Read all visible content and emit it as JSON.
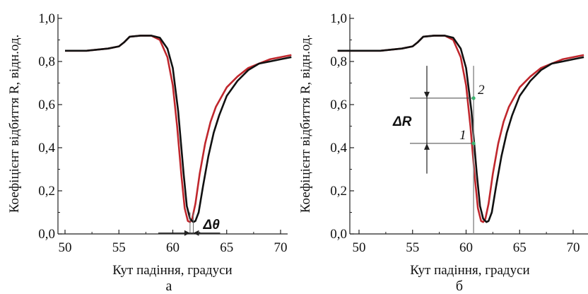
{
  "chart_data": [
    {
      "type": "line",
      "panel_label": "а",
      "xlabel": "Кут падіння, градуси",
      "ylabel": "Коефіцієнт відбиття R, відн.од.",
      "xlim": [
        50,
        71
      ],
      "ylim": [
        0,
        1.0
      ],
      "xticks": [
        "50",
        "55",
        "60",
        "65",
        "70"
      ],
      "yticks": [
        "0,0",
        "0,2",
        "0,4",
        "0,6",
        "0,8",
        "1,0"
      ],
      "grid": false,
      "series": [
        {
          "color": "#c0272d",
          "x": [
            50,
            52,
            54,
            55,
            55.5,
            56,
            57,
            58,
            58.8,
            59.5,
            60,
            60.4,
            60.8,
            61.1,
            61.4,
            61.6,
            61.8,
            62.1,
            62.5,
            63,
            63.5,
            64,
            65,
            66,
            67,
            68,
            69,
            70,
            71
          ],
          "y": [
            0.85,
            0.85,
            0.86,
            0.87,
            0.89,
            0.915,
            0.92,
            0.92,
            0.9,
            0.82,
            0.69,
            0.5,
            0.27,
            0.12,
            0.06,
            0.055,
            0.07,
            0.14,
            0.28,
            0.42,
            0.52,
            0.59,
            0.68,
            0.73,
            0.77,
            0.79,
            0.81,
            0.82,
            0.83
          ]
        },
        {
          "color": "#111111",
          "x": [
            50,
            52,
            54,
            55,
            55.5,
            56,
            57,
            58,
            58.8,
            59.5,
            60,
            60.5,
            61,
            61.3,
            61.6,
            61.9,
            62.1,
            62.4,
            62.8,
            63.3,
            63.8,
            64.3,
            65,
            66,
            67,
            68,
            69,
            70,
            71
          ],
          "y": [
            0.85,
            0.85,
            0.86,
            0.87,
            0.89,
            0.915,
            0.92,
            0.92,
            0.91,
            0.86,
            0.77,
            0.57,
            0.28,
            0.13,
            0.07,
            0.055,
            0.06,
            0.1,
            0.22,
            0.36,
            0.47,
            0.55,
            0.64,
            0.71,
            0.76,
            0.79,
            0.8,
            0.81,
            0.82
          ]
        }
      ],
      "annotations": [
        {
          "text": "Δθ",
          "x1": 61.6,
          "x2": 61.9,
          "y": 0.05
        }
      ]
    },
    {
      "type": "line",
      "panel_label": "б",
      "xlabel": "Кут падіння, градуси",
      "ylabel": "Коефіцієнт відбиття R, відн.од.",
      "xlim": [
        48,
        71
      ],
      "ylim": [
        0,
        1.0
      ],
      "xticks": [
        "50",
        "55",
        "60",
        "65",
        "70"
      ],
      "yticks": [
        "0,0",
        "0,2",
        "0,4",
        "0,6",
        "0,8",
        "1,0"
      ],
      "grid": false,
      "series": [
        {
          "color": "#c0272d",
          "x": [
            48,
            50,
            52,
            54,
            55,
            55.5,
            56,
            57,
            58,
            58.8,
            59.5,
            60,
            60.4,
            60.8,
            61.1,
            61.4,
            61.6,
            61.8,
            62.1,
            62.5,
            63,
            63.5,
            64,
            65,
            66,
            67,
            68,
            69,
            70,
            71
          ],
          "y": [
            0.85,
            0.85,
            0.85,
            0.86,
            0.87,
            0.89,
            0.915,
            0.92,
            0.92,
            0.9,
            0.82,
            0.69,
            0.5,
            0.27,
            0.12,
            0.06,
            0.055,
            0.07,
            0.14,
            0.28,
            0.42,
            0.52,
            0.59,
            0.68,
            0.73,
            0.77,
            0.79,
            0.81,
            0.82,
            0.83
          ]
        },
        {
          "color": "#111111",
          "x": [
            48,
            50,
            52,
            54,
            55,
            55.5,
            56,
            57,
            58,
            58.8,
            59.5,
            60,
            60.5,
            61,
            61.3,
            61.6,
            61.9,
            62.1,
            62.4,
            62.8,
            63.3,
            63.8,
            64.3,
            65,
            66,
            67,
            68,
            69,
            70,
            71
          ],
          "y": [
            0.85,
            0.85,
            0.85,
            0.86,
            0.87,
            0.89,
            0.915,
            0.92,
            0.92,
            0.91,
            0.86,
            0.77,
            0.57,
            0.28,
            0.13,
            0.07,
            0.055,
            0.06,
            0.1,
            0.22,
            0.36,
            0.47,
            0.55,
            0.64,
            0.71,
            0.76,
            0.79,
            0.8,
            0.81,
            0.82
          ]
        }
      ],
      "vline_x": 60.7,
      "points": [
        {
          "label": "1",
          "x": 60.7,
          "y": 0.42,
          "color": "#3cb371"
        },
        {
          "label": "2",
          "x": 60.7,
          "y": 0.63,
          "color": "#3cb371"
        }
      ],
      "annotations": [
        {
          "text": "ΔR",
          "y1": 0.42,
          "y2": 0.63
        }
      ]
    }
  ]
}
